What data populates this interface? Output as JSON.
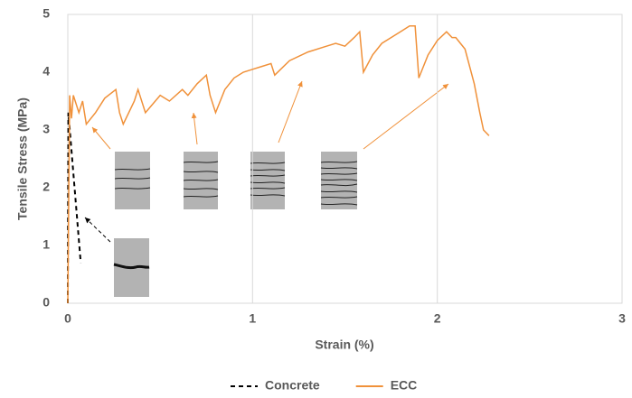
{
  "chart_data": {
    "type": "line",
    "xlabel": "Strain (%)",
    "ylabel": "Tensile Stress (MPa)",
    "xlim": [
      0,
      3
    ],
    "ylim": [
      0,
      5
    ],
    "xticks": [
      0,
      1,
      2,
      3
    ],
    "yticks": [
      0,
      1,
      2,
      3,
      4,
      5
    ],
    "grid": "x",
    "legend": "bottom",
    "series": [
      {
        "name": "Concrete",
        "color": "#000000",
        "dashed": true,
        "x": [
          0,
          0.003,
          0.07
        ],
        "values": [
          0,
          3.3,
          0.7
        ]
      },
      {
        "name": "ECC",
        "color": "#f0913a",
        "dashed": false,
        "x": [
          0,
          0.01,
          0.02,
          0.03,
          0.06,
          0.08,
          0.1,
          0.15,
          0.2,
          0.26,
          0.28,
          0.3,
          0.36,
          0.38,
          0.42,
          0.5,
          0.55,
          0.62,
          0.65,
          0.7,
          0.75,
          0.77,
          0.8,
          0.85,
          0.9,
          0.95,
          1.0,
          1.05,
          1.1,
          1.12,
          1.2,
          1.3,
          1.4,
          1.45,
          1.5,
          1.55,
          1.58,
          1.6,
          1.65,
          1.7,
          1.75,
          1.8,
          1.85,
          1.88,
          1.9,
          1.95,
          2.0,
          2.05,
          2.08,
          2.1,
          2.15,
          2.2,
          2.23,
          2.25,
          2.28
        ],
        "values": [
          0,
          3.6,
          3.2,
          3.6,
          3.3,
          3.5,
          3.1,
          3.3,
          3.55,
          3.7,
          3.3,
          3.1,
          3.5,
          3.7,
          3.3,
          3.6,
          3.5,
          3.7,
          3.6,
          3.8,
          3.95,
          3.6,
          3.3,
          3.7,
          3.9,
          4.0,
          4.05,
          4.1,
          4.15,
          3.95,
          4.2,
          4.35,
          4.45,
          4.5,
          4.45,
          4.6,
          4.7,
          4.0,
          4.3,
          4.5,
          4.6,
          4.7,
          4.8,
          4.8,
          3.9,
          4.3,
          4.55,
          4.7,
          4.6,
          4.6,
          4.4,
          3.8,
          3.3,
          3.0,
          2.9
        ]
      }
    ]
  }
}
